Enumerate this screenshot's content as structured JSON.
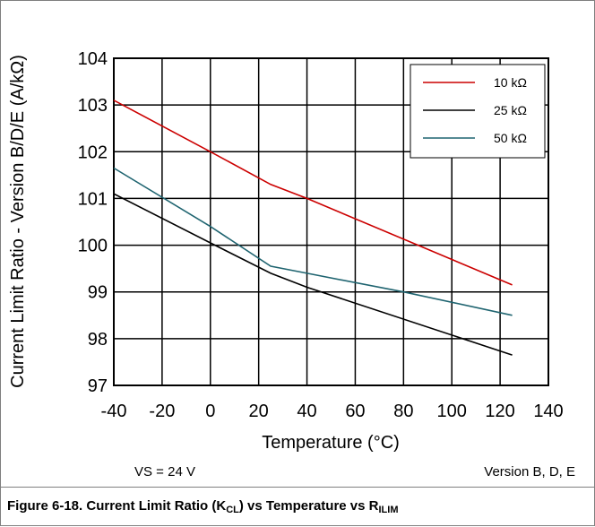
{
  "chart_data": {
    "type": "line",
    "xlabel": "Temperature (°C)",
    "ylabel": "Current Limit Ratio - Version B/D/E (A/kΩ)",
    "xlim": [
      -40,
      140
    ],
    "ylim": [
      97,
      104
    ],
    "xticks": [
      -40,
      -20,
      0,
      20,
      40,
      60,
      80,
      100,
      120,
      140
    ],
    "yticks": [
      97,
      98,
      99,
      100,
      101,
      102,
      103,
      104
    ],
    "grid": true,
    "legend_position": "top-right",
    "series": [
      {
        "name": "10 kΩ",
        "color": "#cc0000",
        "x": [
          -40,
          0,
          25,
          40,
          125
        ],
        "y": [
          103.1,
          102.0,
          101.3,
          101.0,
          99.15
        ]
      },
      {
        "name": "25 kΩ",
        "color": "#000000",
        "x": [
          -40,
          0,
          25,
          40,
          125
        ],
        "y": [
          101.1,
          100.05,
          99.4,
          99.1,
          97.65
        ]
      },
      {
        "name": "50 kΩ",
        "color": "#1f6470",
        "x": [
          -40,
          0,
          25,
          40,
          80,
          125
        ],
        "y": [
          101.65,
          100.4,
          99.55,
          99.4,
          99.0,
          98.5
        ]
      }
    ]
  },
  "notes": {
    "conditions": "VS = 24 V",
    "version": "Version B, D, E"
  },
  "caption": {
    "prefix": "Figure 6-18. Current Limit Ratio (K",
    "sub1": "CL",
    "middle": ") vs Temperature vs R",
    "sub2": "ILIM"
  }
}
